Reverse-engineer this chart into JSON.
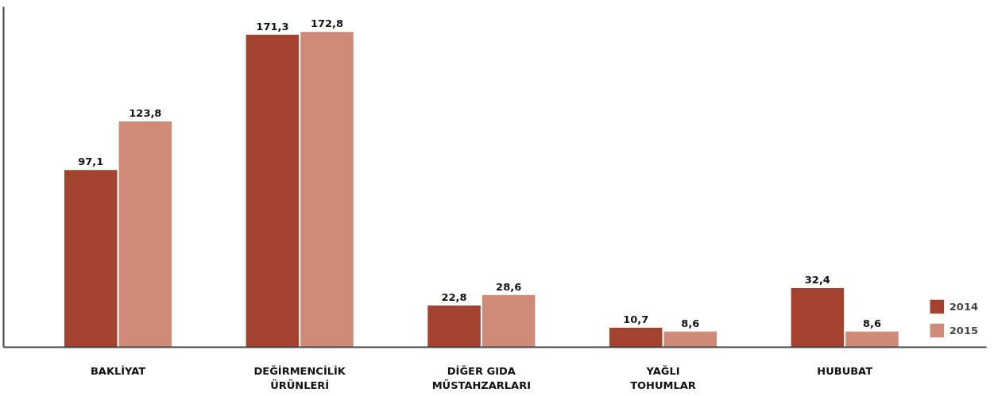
{
  "chart_data": {
    "type": "bar",
    "categories": [
      "BAKLİYAT",
      "DEĞİRMENCİLİK\nÜRÜNLERİ",
      "DİĞER GIDA\nMÜSTAHZARLARI",
      "YAĞLI\nTOHUMLAR",
      "HUBUBAT"
    ],
    "series": [
      {
        "name": "2014",
        "color": "#a3432f",
        "values": [
          97.1,
          171.3,
          22.8,
          10.7,
          32.4
        ],
        "value_labels": [
          "97,1",
          "171,3",
          "22,8",
          "10,7",
          "32,4"
        ]
      },
      {
        "name": "2015",
        "color": "#d08b78",
        "values": [
          123.8,
          172.8,
          28.6,
          8.6,
          8.6
        ],
        "value_labels": [
          "123,8",
          "172,8",
          "28,6",
          "8,6",
          "8,6"
        ]
      }
    ],
    "legend": "bottom right"
  }
}
